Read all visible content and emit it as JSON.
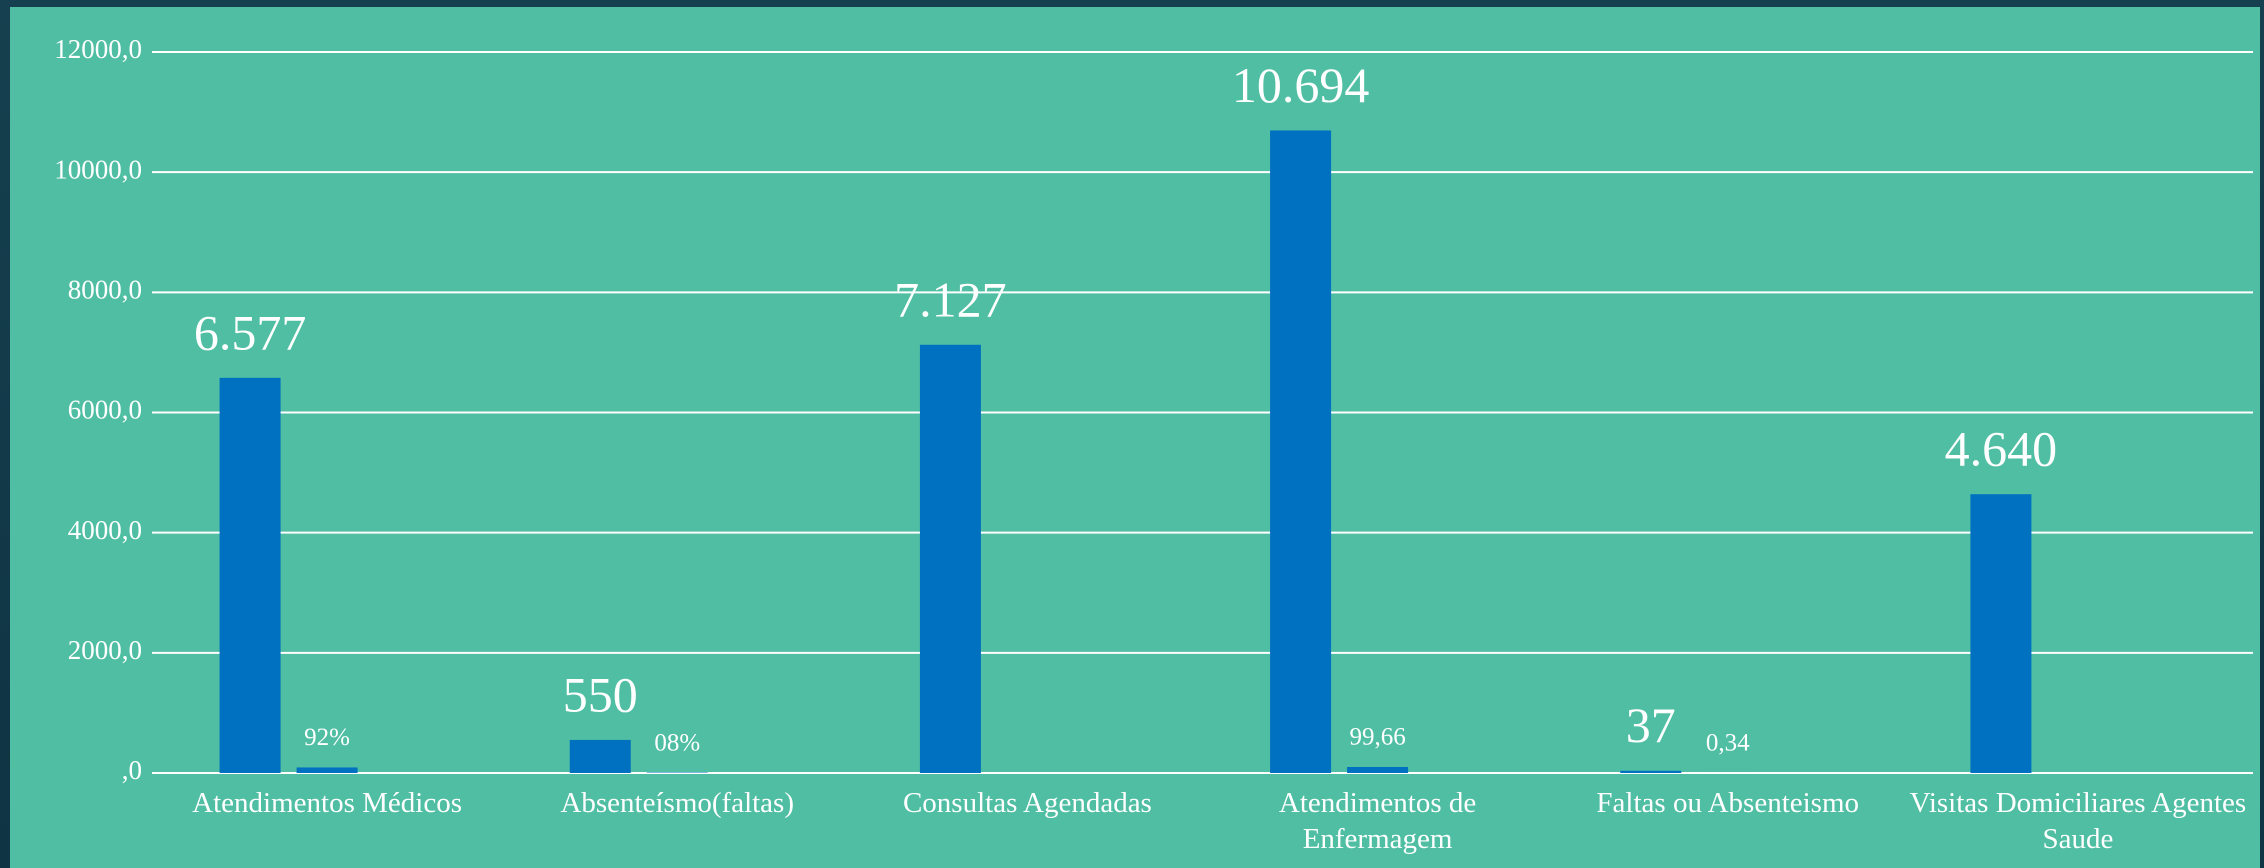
{
  "chart_data": {
    "type": "bar",
    "categories": [
      "Atendimentos Médicos",
      "Absenteísmo(faltas)",
      "Consultas Agendadas",
      "Atendimentos de Enfermagem",
      "Faltas ou Absenteismo",
      "Visitas Domiciliares Agentes Saude"
    ],
    "series": [
      {
        "color": "#0070c0",
        "values": [
          6577,
          550,
          7127,
          10694,
          37,
          4640
        ],
        "value_labels": [
          "6.577",
          "550",
          "7.127",
          "10.694",
          "37",
          "4.640"
        ]
      },
      {
        "color": "#0070c0",
        "values": [
          92,
          8,
          null,
          99.66,
          0.34,
          null
        ],
        "value_labels": [
          "92%",
          "08%",
          null,
          "99,66",
          "0,34",
          null
        ]
      }
    ],
    "ylim": [
      0,
      12000
    ],
    "yticks": [
      {
        "value": 0,
        "label": ",0"
      },
      {
        "value": 2000,
        "label": "2000,0"
      },
      {
        "value": 4000,
        "label": "4000,0"
      },
      {
        "value": 6000,
        "label": "6000,0"
      },
      {
        "value": 8000,
        "label": "8000,0"
      },
      {
        "value": 10000,
        "label": "10000,0"
      },
      {
        "value": 12000,
        "label": "12000,0"
      }
    ],
    "grid": true
  }
}
